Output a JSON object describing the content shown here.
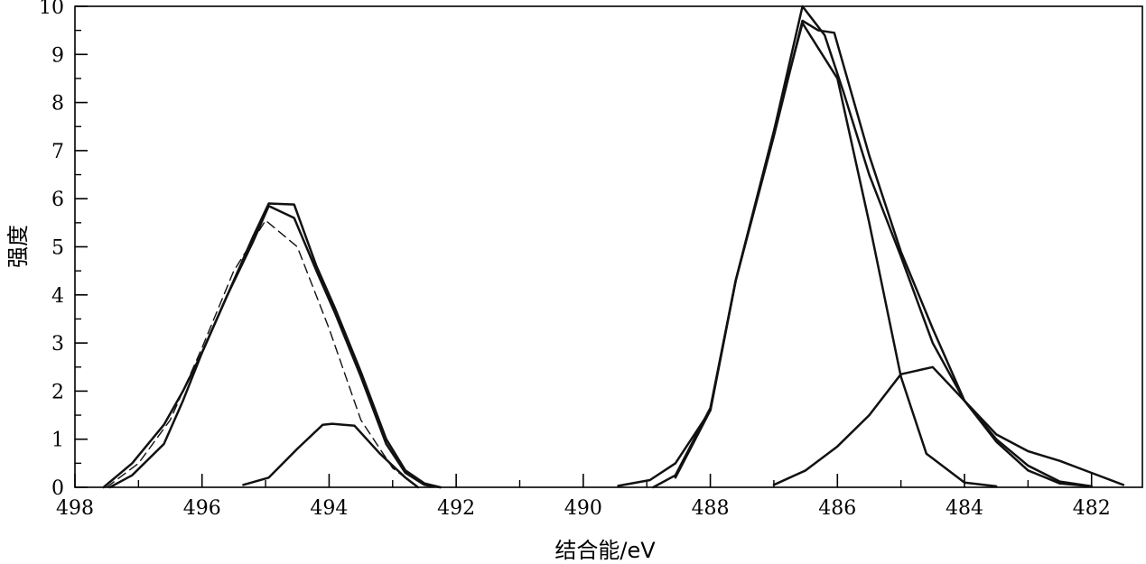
{
  "chart_data": {
    "type": "line",
    "title": "",
    "xlabel": "结合能/eV",
    "ylabel": "强度",
    "xlim": [
      498,
      481.2
    ],
    "ylim": [
      0,
      10
    ],
    "x_reversed": true,
    "grid": false,
    "legend": "none",
    "xticks": [
      498,
      496,
      494,
      492,
      490,
      488,
      486,
      484,
      482
    ],
    "yticks": [
      0,
      1,
      2,
      3,
      4,
      5,
      6,
      7,
      8,
      9,
      10
    ],
    "series": [
      {
        "style": "solid",
        "x": [
          497.55,
          497.1,
          496.6,
          496.3,
          496.0,
          495.6,
          495.2,
          494.95,
          494.55,
          494.2,
          493.9,
          493.5,
          493.1,
          492.8,
          492.5,
          492.25
        ],
        "y": [
          0,
          0.5,
          1.3,
          2.0,
          2.8,
          4.0,
          5.2,
          5.9,
          5.88,
          4.6,
          3.7,
          2.4,
          1.0,
          0.35,
          0.08,
          0
        ]
      },
      {
        "style": "solid",
        "x": [
          497.45,
          497.1,
          496.6,
          496.3,
          496.0,
          495.6,
          495.2,
          494.95,
          494.55,
          494.2,
          493.9,
          493.5,
          493.1,
          492.8,
          492.5,
          492.25
        ],
        "y": [
          0,
          0.25,
          0.9,
          1.8,
          2.8,
          4.0,
          5.1,
          5.85,
          5.6,
          4.5,
          3.6,
          2.3,
          0.9,
          0.3,
          0.05,
          0
        ]
      },
      {
        "style": "dashed",
        "x": [
          497.5,
          497.0,
          496.5,
          496.0,
          495.5,
          495.0,
          494.5,
          494.0,
          493.5,
          493.0,
          492.6
        ],
        "y": [
          0,
          0.5,
          1.4,
          2.9,
          4.5,
          5.55,
          5.0,
          3.3,
          1.4,
          0.4,
          0
        ]
      },
      {
        "style": "solid",
        "x": [
          495.35,
          494.95,
          494.5,
          494.1,
          493.95,
          493.6,
          493.2,
          492.8,
          492.6
        ],
        "y": [
          0.05,
          0.2,
          0.8,
          1.3,
          1.32,
          1.28,
          0.7,
          0.2,
          0
        ]
      },
      {
        "style": "solid",
        "x": [
          489.45,
          488.95,
          488.55,
          488.0,
          487.6,
          487.0,
          486.55,
          486.2,
          485.9,
          485.5,
          485.0,
          484.5,
          484.0,
          483.5,
          483.0,
          482.5,
          482.0,
          481.5
        ],
        "y": [
          0.03,
          0.15,
          0.5,
          1.6,
          4.3,
          7.4,
          10.0,
          9.4,
          8.2,
          6.5,
          4.8,
          3.0,
          1.8,
          1.1,
          0.75,
          0.55,
          0.3,
          0.05
        ]
      },
      {
        "style": "solid",
        "x": [
          488.9,
          488.55,
          488.0,
          487.6,
          487.0,
          486.55,
          486.3,
          486.05,
          485.5,
          485.0,
          484.5,
          484.0,
          483.5,
          483.0,
          482.5,
          482.0
        ],
        "y": [
          0,
          0.25,
          1.65,
          4.3,
          7.3,
          9.7,
          9.5,
          9.45,
          6.9,
          4.9,
          3.3,
          1.8,
          0.95,
          0.35,
          0.08,
          0.02
        ]
      },
      {
        "style": "solid",
        "x": [
          488.55,
          488.0,
          487.6,
          487.0,
          486.55,
          486.0,
          485.5,
          485.0,
          484.6,
          484.0,
          483.5
        ],
        "y": [
          0.2,
          1.6,
          4.3,
          7.4,
          9.65,
          8.5,
          5.5,
          2.3,
          0.7,
          0.1,
          0.02
        ]
      },
      {
        "style": "solid",
        "x": [
          487.0,
          486.5,
          486.0,
          485.5,
          485.0,
          484.5,
          484.0,
          483.5,
          483.0,
          482.5,
          482.0
        ],
        "y": [
          0.05,
          0.35,
          0.85,
          1.5,
          2.35,
          2.5,
          1.8,
          1.0,
          0.45,
          0.12,
          0.02
        ]
      }
    ]
  }
}
